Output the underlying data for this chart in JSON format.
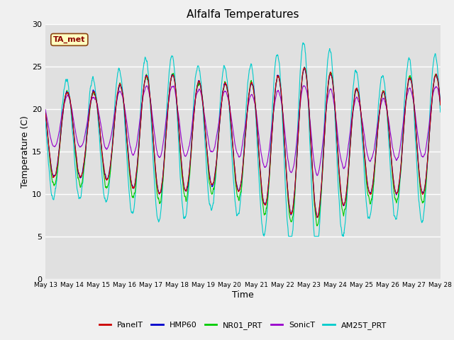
{
  "title": "Alfalfa Temperatures",
  "xlabel": "Time",
  "ylabel": "Temperature (C)",
  "ylim": [
    0,
    30
  ],
  "annotation": "TA_met",
  "series_names": [
    "PanelT",
    "HMP60",
    "NR01_PRT",
    "SonicT",
    "AM25T_PRT"
  ],
  "series_colors": [
    "#cc0000",
    "#0000cc",
    "#00cc00",
    "#9900cc",
    "#00cccc"
  ],
  "fig_facecolor": "#f0f0f0",
  "ax_facecolor": "#e0e0e0",
  "start_day": 13,
  "end_day": 28,
  "num_days": 15,
  "points_per_day": 144
}
